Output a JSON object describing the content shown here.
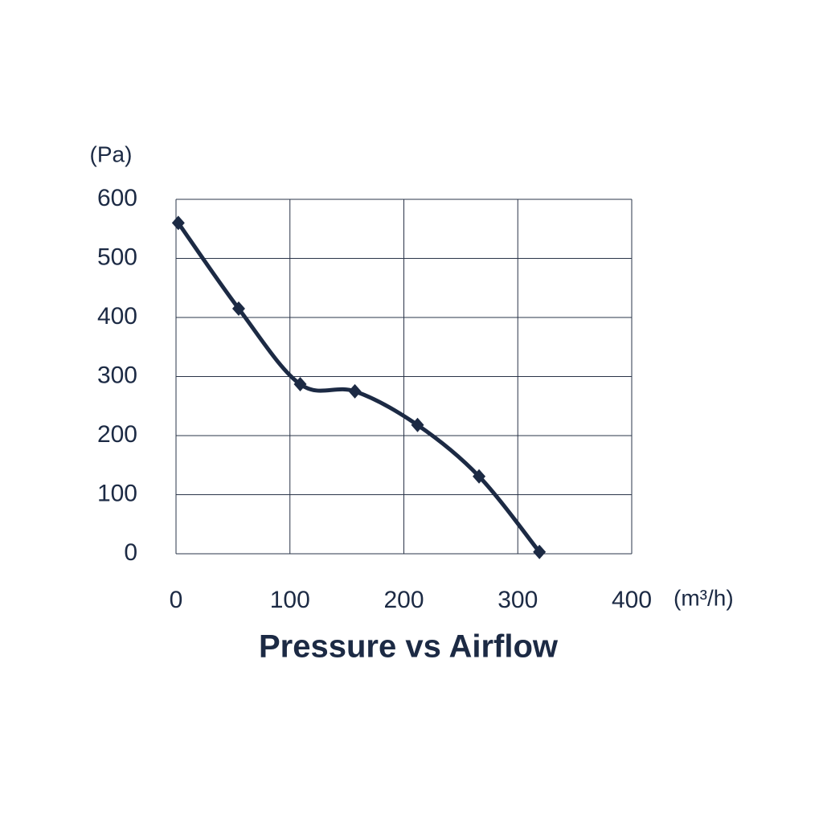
{
  "chart_data": {
    "type": "line",
    "title": "Pressure vs Airflow",
    "y_label": "(Pa)",
    "x_label": "(m³/h)",
    "x": [
      2,
      55,
      109,
      157,
      212,
      266,
      319
    ],
    "series": [
      {
        "color": "#1c2a44",
        "values": [
          560,
          415,
          287,
          275,
          218,
          131,
          3
        ]
      }
    ],
    "xlim": [
      0,
      400
    ],
    "xticks": [
      0,
      100,
      200,
      300,
      400
    ],
    "ylim": [
      0,
      600
    ],
    "yticks": [
      0,
      100,
      200,
      300,
      400,
      500,
      600
    ],
    "grid": true
  }
}
